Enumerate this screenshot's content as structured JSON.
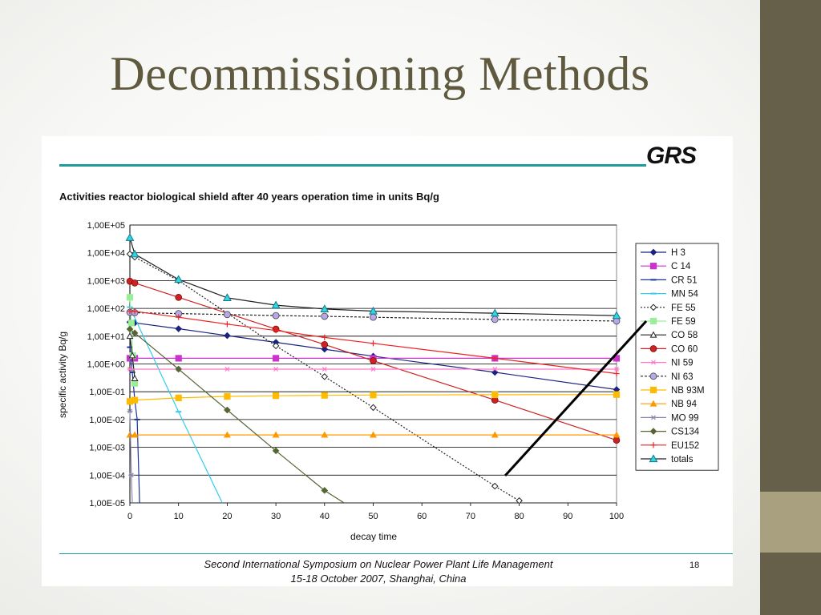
{
  "slide": {
    "title": "Decommissioning Methods"
  },
  "figure": {
    "logo": "GRS",
    "footer_line1": "Second International Symposium on Nuclear Power Plant Life Management",
    "footer_line2": "15-18 October 2007, Shanghai, China",
    "page_number": "18"
  },
  "colors": {
    "sidebar": "#665f49",
    "accent": "#a8a07e",
    "title": "#5f5a3f",
    "rule": "#1f9a9a"
  },
  "chart_data": {
    "type": "line",
    "title": "Activities reactor biological shield after 40 years operation time in units Bq/g",
    "xlabel": "decay time",
    "ylabel": "specific activity Bq/g",
    "x_ticks": [
      "0",
      "10",
      "20",
      "30",
      "40",
      "50",
      "60",
      "70",
      "80",
      "90",
      "100"
    ],
    "y_ticks": [
      "1,00E-05",
      "1,00E-04",
      "1,00E-03",
      "1,00E-02",
      "1,00E-01",
      "1,00E+00",
      "1,00E+01",
      "1,00E+02",
      "1,00E+03",
      "1,00E+04",
      "1,00E+05"
    ],
    "xlim": [
      0,
      100
    ],
    "ylim": [
      1e-05,
      100000.0
    ],
    "yscale": "log",
    "legend_position": "right",
    "grid": true,
    "series": [
      {
        "name": "H   3",
        "color": "#1a237e",
        "marker": "diamond",
        "dash": "",
        "points": [
          [
            0,
            32
          ],
          [
            1,
            30
          ],
          [
            10,
            18.5
          ],
          [
            20,
            10.5
          ],
          [
            30,
            6
          ],
          [
            40,
            3.4
          ],
          [
            50,
            1.9
          ],
          [
            75,
            0.5
          ],
          [
            100,
            0.12
          ]
        ]
      },
      {
        "name": "C  14",
        "color": "#cc33cc",
        "marker": "square",
        "dash": "",
        "points": [
          [
            0,
            1.6
          ],
          [
            1,
            1.6
          ],
          [
            10,
            1.6
          ],
          [
            30,
            1.6
          ],
          [
            50,
            1.6
          ],
          [
            75,
            1.6
          ],
          [
            100,
            1.6
          ]
        ]
      },
      {
        "name": "CR 51",
        "color": "#1a3399",
        "marker": "dash",
        "dash": "",
        "points": [
          [
            0,
            4
          ],
          [
            0.5,
            0.5
          ],
          [
            1,
            0.05
          ],
          [
            1.5,
            0.01
          ],
          [
            2,
            1e-05
          ]
        ]
      },
      {
        "name": "MN 54",
        "color": "#33ccee",
        "marker": "dash",
        "dash": "",
        "points": [
          [
            0,
            110
          ],
          [
            10,
            0.019
          ],
          [
            19,
            1e-05
          ]
        ]
      },
      {
        "name": "FE 55",
        "color": "#222222",
        "marker": "hollow-diamond",
        "dash": "2,2",
        "points": [
          [
            0,
            9000
          ],
          [
            1,
            7000
          ],
          [
            10,
            1000
          ],
          [
            30,
            4.5
          ],
          [
            40,
            0.35
          ],
          [
            50,
            0.027
          ],
          [
            75,
            4e-05
          ],
          [
            80,
            1.2e-05
          ]
        ]
      },
      {
        "name": "FE 59",
        "color": "#99ee99",
        "marker": "square",
        "dash": "",
        "points": [
          [
            0,
            250
          ],
          [
            0.3,
            30
          ],
          [
            0.6,
            2
          ],
          [
            1,
            0.2
          ]
        ]
      },
      {
        "name": "CO 58",
        "color": "#222222",
        "marker": "triangle-open",
        "dash": "",
        "points": [
          [
            0,
            10
          ],
          [
            0.5,
            2
          ],
          [
            1,
            0.3
          ]
        ]
      },
      {
        "name": "CO 60",
        "color": "#cc2222",
        "marker": "circle",
        "dash": "",
        "points": [
          [
            0,
            950
          ],
          [
            1,
            820
          ],
          [
            10,
            250
          ],
          [
            30,
            18
          ],
          [
            40,
            5
          ],
          [
            50,
            1.3
          ],
          [
            75,
            0.05
          ],
          [
            100,
            0.0018
          ]
        ]
      },
      {
        "name": "NI 59",
        "color": "#ff77cc",
        "marker": "asterisk",
        "dash": "",
        "points": [
          [
            0,
            0.65
          ],
          [
            10,
            0.65
          ],
          [
            20,
            0.65
          ],
          [
            30,
            0.65
          ],
          [
            40,
            0.65
          ],
          [
            50,
            0.65
          ],
          [
            75,
            0.65
          ],
          [
            100,
            0.65
          ]
        ]
      },
      {
        "name": "NI 63",
        "color": "#222222",
        "marker": "circle-open",
        "dash": "3,2",
        "points": [
          [
            0,
            72
          ],
          [
            1,
            70
          ],
          [
            10,
            65
          ],
          [
            20,
            60
          ],
          [
            30,
            55
          ],
          [
            40,
            52
          ],
          [
            50,
            48
          ],
          [
            75,
            40
          ],
          [
            100,
            35
          ]
        ]
      },
      {
        "name": "NB 93M",
        "color": "#ffbb00",
        "marker": "square",
        "dash": "",
        "points": [
          [
            0,
            0.045
          ],
          [
            1,
            0.05
          ],
          [
            10,
            0.06
          ],
          [
            20,
            0.068
          ],
          [
            30,
            0.072
          ],
          [
            40,
            0.074
          ],
          [
            50,
            0.076
          ],
          [
            75,
            0.078
          ],
          [
            100,
            0.079
          ]
        ]
      },
      {
        "name": "NB 94",
        "color": "#ff9900",
        "marker": "triangle",
        "dash": "",
        "points": [
          [
            0,
            0.0028
          ],
          [
            1,
            0.0028
          ],
          [
            20,
            0.0028
          ],
          [
            30,
            0.0028
          ],
          [
            40,
            0.0028
          ],
          [
            50,
            0.0028
          ],
          [
            75,
            0.0028
          ],
          [
            100,
            0.0028
          ]
        ]
      },
      {
        "name": "MO 99",
        "color": "#8888aa",
        "marker": "asterisk",
        "dash": "",
        "points": [
          [
            0,
            0.02
          ],
          [
            0.3,
            0.0001
          ],
          [
            0.5,
            1e-05
          ]
        ]
      },
      {
        "name": "CS134",
        "color": "#556633",
        "marker": "diamond",
        "dash": "",
        "points": [
          [
            0,
            18
          ],
          [
            1,
            13
          ],
          [
            10,
            0.65
          ],
          [
            20,
            0.022
          ],
          [
            30,
            0.00075
          ],
          [
            40,
            2.8e-05
          ],
          [
            44,
            1e-05
          ]
        ]
      },
      {
        "name": "EU152",
        "color": "#ee2222",
        "marker": "plus",
        "dash": "",
        "points": [
          [
            0,
            80
          ],
          [
            1,
            78
          ],
          [
            10,
            48
          ],
          [
            20,
            27
          ],
          [
            30,
            16
          ],
          [
            40,
            9
          ],
          [
            50,
            5.5
          ],
          [
            75,
            1.6
          ],
          [
            100,
            0.45
          ]
        ]
      },
      {
        "name": "totals",
        "color": "#222222",
        "marker": "triangle-teal",
        "dash": "",
        "points": [
          [
            0,
            35000
          ],
          [
            1,
            9000
          ],
          [
            10,
            1100
          ],
          [
            20,
            240
          ],
          [
            30,
            130
          ],
          [
            40,
            95
          ],
          [
            50,
            80
          ],
          [
            75,
            67
          ],
          [
            100,
            55
          ]
        ]
      }
    ]
  }
}
